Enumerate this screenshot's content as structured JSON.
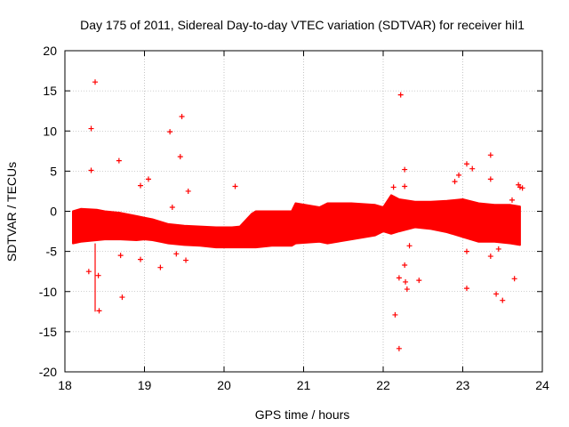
{
  "chart_data": {
    "type": "scatter",
    "title": "Day 175 of 2011, Sidereal Day-to-day VTEC variation (SDTVAR) for receiver hil1",
    "xlabel": "GPS time / hours",
    "ylabel": "SDTVAR / TECUs",
    "xlim": [
      18,
      24
    ],
    "ylim": [
      -20,
      20
    ],
    "xticks": [
      18,
      19,
      20,
      21,
      22,
      23,
      24
    ],
    "yticks": [
      -20,
      -15,
      -10,
      -5,
      0,
      5,
      10,
      15,
      20
    ],
    "grid": true,
    "marker": "+",
    "series_color": "#ff0000",
    "band": {
      "description": "dense scatter of SDTVAR samples, lower and upper envelope in TECU",
      "x": [
        18.1,
        18.2,
        18.4,
        18.5,
        18.7,
        18.9,
        19.0,
        19.1,
        19.2,
        19.3,
        19.5,
        19.7,
        19.9,
        20.1,
        20.2,
        20.35,
        20.4,
        20.6,
        20.85,
        20.9,
        21.2,
        21.3,
        21.6,
        21.9,
        22.0,
        22.1,
        22.2,
        22.4,
        22.6,
        22.8,
        23.0,
        23.2,
        23.4,
        23.6,
        23.72
      ],
      "lower": [
        -4.0,
        -3.8,
        -3.6,
        -3.5,
        -3.5,
        -3.6,
        -3.5,
        -3.6,
        -3.8,
        -4.0,
        -4.2,
        -4.3,
        -4.5,
        -4.5,
        -4.5,
        -4.5,
        -4.5,
        -4.3,
        -4.3,
        -4.0,
        -3.8,
        -4.0,
        -3.5,
        -3.0,
        -2.5,
        -2.8,
        -2.5,
        -2.0,
        -2.2,
        -2.6,
        -3.2,
        -3.8,
        -3.8,
        -4.0,
        -4.2
      ],
      "upper": [
        0.0,
        0.3,
        0.2,
        0.0,
        -0.2,
        -0.6,
        -0.8,
        -1.0,
        -1.3,
        -1.6,
        -1.8,
        -1.9,
        -2.0,
        -2.0,
        -1.9,
        -0.3,
        0.0,
        0.0,
        0.0,
        1.0,
        0.5,
        1.0,
        1.0,
        0.8,
        0.5,
        2.0,
        1.5,
        1.2,
        1.2,
        1.3,
        1.5,
        1.0,
        0.8,
        0.8,
        0.6
      ]
    },
    "outliers": [
      {
        "x": 18.38,
        "y": 16.1
      },
      {
        "x": 18.33,
        "y": 10.3
      },
      {
        "x": 18.33,
        "y": 5.1
      },
      {
        "x": 18.68,
        "y": 6.3
      },
      {
        "x": 19.32,
        "y": 9.9
      },
      {
        "x": 19.47,
        "y": 11.8
      },
      {
        "x": 19.45,
        "y": 6.8
      },
      {
        "x": 19.55,
        "y": 2.5
      },
      {
        "x": 20.14,
        "y": 3.1
      },
      {
        "x": 18.3,
        "y": -7.5
      },
      {
        "x": 18.43,
        "y": -12.4
      },
      {
        "x": 18.72,
        "y": -10.7
      },
      {
        "x": 18.7,
        "y": -5.5
      },
      {
        "x": 18.95,
        "y": -6.0
      },
      {
        "x": 19.2,
        "y": -7.0
      },
      {
        "x": 19.4,
        "y": -5.3
      },
      {
        "x": 19.52,
        "y": -6.1
      },
      {
        "x": 18.95,
        "y": 3.2
      },
      {
        "x": 19.05,
        "y": 4.0
      },
      {
        "x": 19.35,
        "y": 0.5
      },
      {
        "x": 18.42,
        "y": -8.0
      },
      {
        "x": 22.22,
        "y": 14.5
      },
      {
        "x": 22.15,
        "y": -12.9
      },
      {
        "x": 22.2,
        "y": -17.1
      },
      {
        "x": 22.2,
        "y": -8.3
      },
      {
        "x": 22.28,
        "y": -8.8
      },
      {
        "x": 22.3,
        "y": -9.7
      },
      {
        "x": 22.27,
        "y": -6.7
      },
      {
        "x": 22.45,
        "y": -8.6
      },
      {
        "x": 22.27,
        "y": 5.2
      },
      {
        "x": 22.27,
        "y": 3.1
      },
      {
        "x": 22.13,
        "y": 3.0
      },
      {
        "x": 22.33,
        "y": -4.3
      },
      {
        "x": 22.9,
        "y": 3.7
      },
      {
        "x": 22.95,
        "y": 4.5
      },
      {
        "x": 23.05,
        "y": 5.9
      },
      {
        "x": 23.12,
        "y": 5.3
      },
      {
        "x": 23.35,
        "y": 7.0
      },
      {
        "x": 23.35,
        "y": 4.0
      },
      {
        "x": 23.05,
        "y": -9.6
      },
      {
        "x": 23.05,
        "y": -5.0
      },
      {
        "x": 23.35,
        "y": -5.6
      },
      {
        "x": 23.45,
        "y": -4.7
      },
      {
        "x": 23.42,
        "y": -10.3
      },
      {
        "x": 23.5,
        "y": -11.1
      },
      {
        "x": 23.65,
        "y": -8.4
      },
      {
        "x": 23.7,
        "y": 3.3
      },
      {
        "x": 23.72,
        "y": 3.0
      },
      {
        "x": 23.62,
        "y": 1.4
      },
      {
        "x": 23.75,
        "y": 2.9
      }
    ],
    "spikes": [
      {
        "x": 18.38,
        "y_from": -4.0,
        "y_to": -12.5
      }
    ]
  }
}
